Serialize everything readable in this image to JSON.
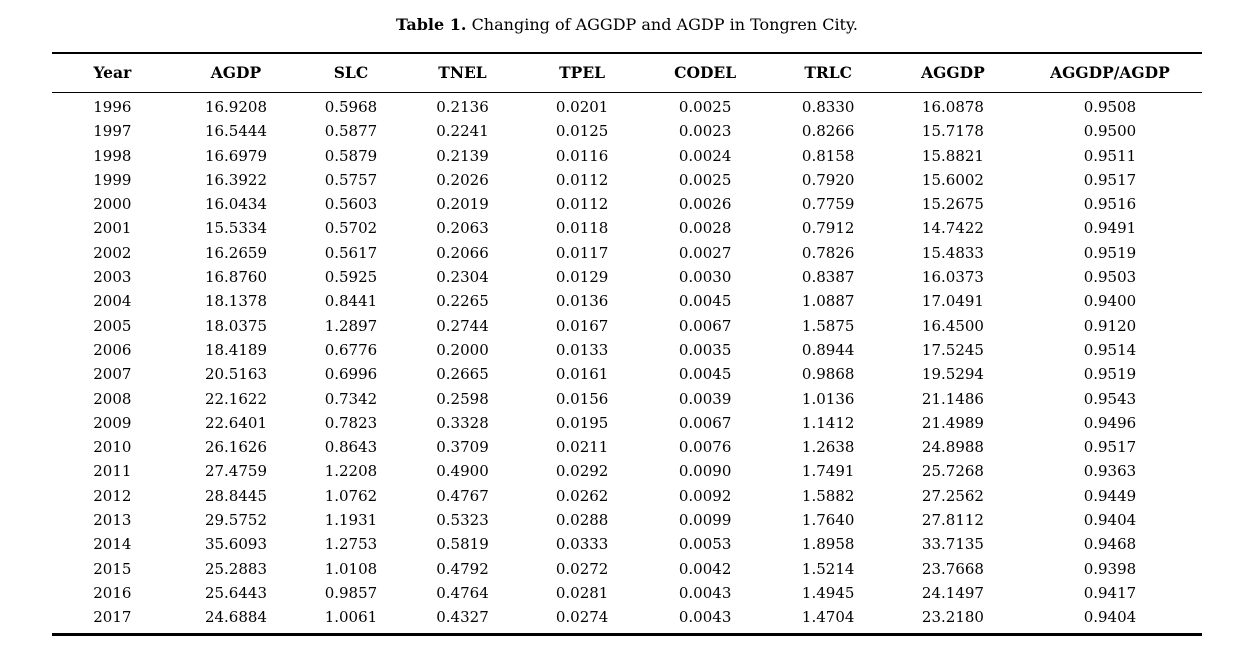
{
  "caption": {
    "label": "Table 1.",
    "text": "Changing of AGGDP and AGDP in Tongren City."
  },
  "colors": {
    "background": "#ffffff",
    "text": "#000000",
    "rule": "#000000"
  },
  "table": {
    "columns": [
      "Year",
      "AGDP",
      "SLC",
      "TNEL",
      "TPEL",
      "CODEL",
      "TRLC",
      "AGGDP",
      "AGGDP/AGDP"
    ],
    "rows": [
      [
        "1996",
        "16.9208",
        "0.5968",
        "0.2136",
        "0.0201",
        "0.0025",
        "0.8330",
        "16.0878",
        "0.9508"
      ],
      [
        "1997",
        "16.5444",
        "0.5877",
        "0.2241",
        "0.0125",
        "0.0023",
        "0.8266",
        "15.7178",
        "0.9500"
      ],
      [
        "1998",
        "16.6979",
        "0.5879",
        "0.2139",
        "0.0116",
        "0.0024",
        "0.8158",
        "15.8821",
        "0.9511"
      ],
      [
        "1999",
        "16.3922",
        "0.5757",
        "0.2026",
        "0.0112",
        "0.0025",
        "0.7920",
        "15.6002",
        "0.9517"
      ],
      [
        "2000",
        "16.0434",
        "0.5603",
        "0.2019",
        "0.0112",
        "0.0026",
        "0.7759",
        "15.2675",
        "0.9516"
      ],
      [
        "2001",
        "15.5334",
        "0.5702",
        "0.2063",
        "0.0118",
        "0.0028",
        "0.7912",
        "14.7422",
        "0.9491"
      ],
      [
        "2002",
        "16.2659",
        "0.5617",
        "0.2066",
        "0.0117",
        "0.0027",
        "0.7826",
        "15.4833",
        "0.9519"
      ],
      [
        "2003",
        "16.8760",
        "0.5925",
        "0.2304",
        "0.0129",
        "0.0030",
        "0.8387",
        "16.0373",
        "0.9503"
      ],
      [
        "2004",
        "18.1378",
        "0.8441",
        "0.2265",
        "0.0136",
        "0.0045",
        "1.0887",
        "17.0491",
        "0.9400"
      ],
      [
        "2005",
        "18.0375",
        "1.2897",
        "0.2744",
        "0.0167",
        "0.0067",
        "1.5875",
        "16.4500",
        "0.9120"
      ],
      [
        "2006",
        "18.4189",
        "0.6776",
        "0.2000",
        "0.0133",
        "0.0035",
        "0.8944",
        "17.5245",
        "0.9514"
      ],
      [
        "2007",
        "20.5163",
        "0.6996",
        "0.2665",
        "0.0161",
        "0.0045",
        "0.9868",
        "19.5294",
        "0.9519"
      ],
      [
        "2008",
        "22.1622",
        "0.7342",
        "0.2598",
        "0.0156",
        "0.0039",
        "1.0136",
        "21.1486",
        "0.9543"
      ],
      [
        "2009",
        "22.6401",
        "0.7823",
        "0.3328",
        "0.0195",
        "0.0067",
        "1.1412",
        "21.4989",
        "0.9496"
      ],
      [
        "2010",
        "26.1626",
        "0.8643",
        "0.3709",
        "0.0211",
        "0.0076",
        "1.2638",
        "24.8988",
        "0.9517"
      ],
      [
        "2011",
        "27.4759",
        "1.2208",
        "0.4900",
        "0.0292",
        "0.0090",
        "1.7491",
        "25.7268",
        "0.9363"
      ],
      [
        "2012",
        "28.8445",
        "1.0762",
        "0.4767",
        "0.0262",
        "0.0092",
        "1.5882",
        "27.2562",
        "0.9449"
      ],
      [
        "2013",
        "29.5752",
        "1.1931",
        "0.5323",
        "0.0288",
        "0.0099",
        "1.7640",
        "27.8112",
        "0.9404"
      ],
      [
        "2014",
        "35.6093",
        "1.2753",
        "0.5819",
        "0.0333",
        "0.0053",
        "1.8958",
        "33.7135",
        "0.9468"
      ],
      [
        "2015",
        "25.2883",
        "1.0108",
        "0.4792",
        "0.0272",
        "0.0042",
        "1.5214",
        "23.7668",
        "0.9398"
      ],
      [
        "2016",
        "25.6443",
        "0.9857",
        "0.4764",
        "0.0281",
        "0.0043",
        "1.4945",
        "24.1497",
        "0.9417"
      ],
      [
        "2017",
        "24.6884",
        "1.0061",
        "0.4327",
        "0.0274",
        "0.0043",
        "1.4704",
        "23.2180",
        "0.9404"
      ]
    ]
  }
}
